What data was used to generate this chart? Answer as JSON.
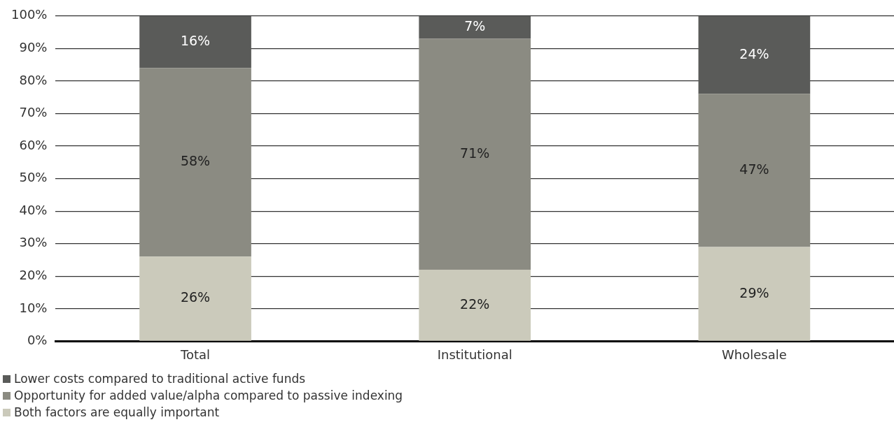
{
  "chart_data": {
    "type": "bar",
    "stacked": true,
    "categories": [
      "Total",
      "Institutional",
      "Wholesale"
    ],
    "series": [
      {
        "name": "Both factors are equally important",
        "color": "#cbcabb",
        "values": [
          26,
          22,
          29
        ]
      },
      {
        "name": "Opportunity for added value/alpha compared to passive indexing",
        "color": "#8b8b82",
        "values": [
          58,
          71,
          47
        ]
      },
      {
        "name": "Lower costs compared to traditional active funds",
        "color": "#5a5b59",
        "values": [
          16,
          7,
          24
        ]
      }
    ],
    "ylim": [
      0,
      100
    ],
    "yticks": [
      {
        "value": 0,
        "label": "0%"
      },
      {
        "value": 10,
        "label": "10%"
      },
      {
        "value": 20,
        "label": "20%"
      },
      {
        "value": 30,
        "label": "30%"
      },
      {
        "value": 40,
        "label": "40%"
      },
      {
        "value": 50,
        "label": "50%"
      },
      {
        "value": 60,
        "label": "60%"
      },
      {
        "value": 70,
        "label": "70%"
      },
      {
        "value": 80,
        "label": "80%"
      },
      {
        "value": 90,
        "label": "90%"
      },
      {
        "value": 100,
        "label": "100%"
      }
    ],
    "value_labels": [
      [
        "26%",
        "22%",
        "29%"
      ],
      [
        "58%",
        "71%",
        "47%"
      ],
      [
        "16%",
        "7%",
        "24%"
      ]
    ],
    "grid": "y",
    "legend": "bottom left"
  }
}
